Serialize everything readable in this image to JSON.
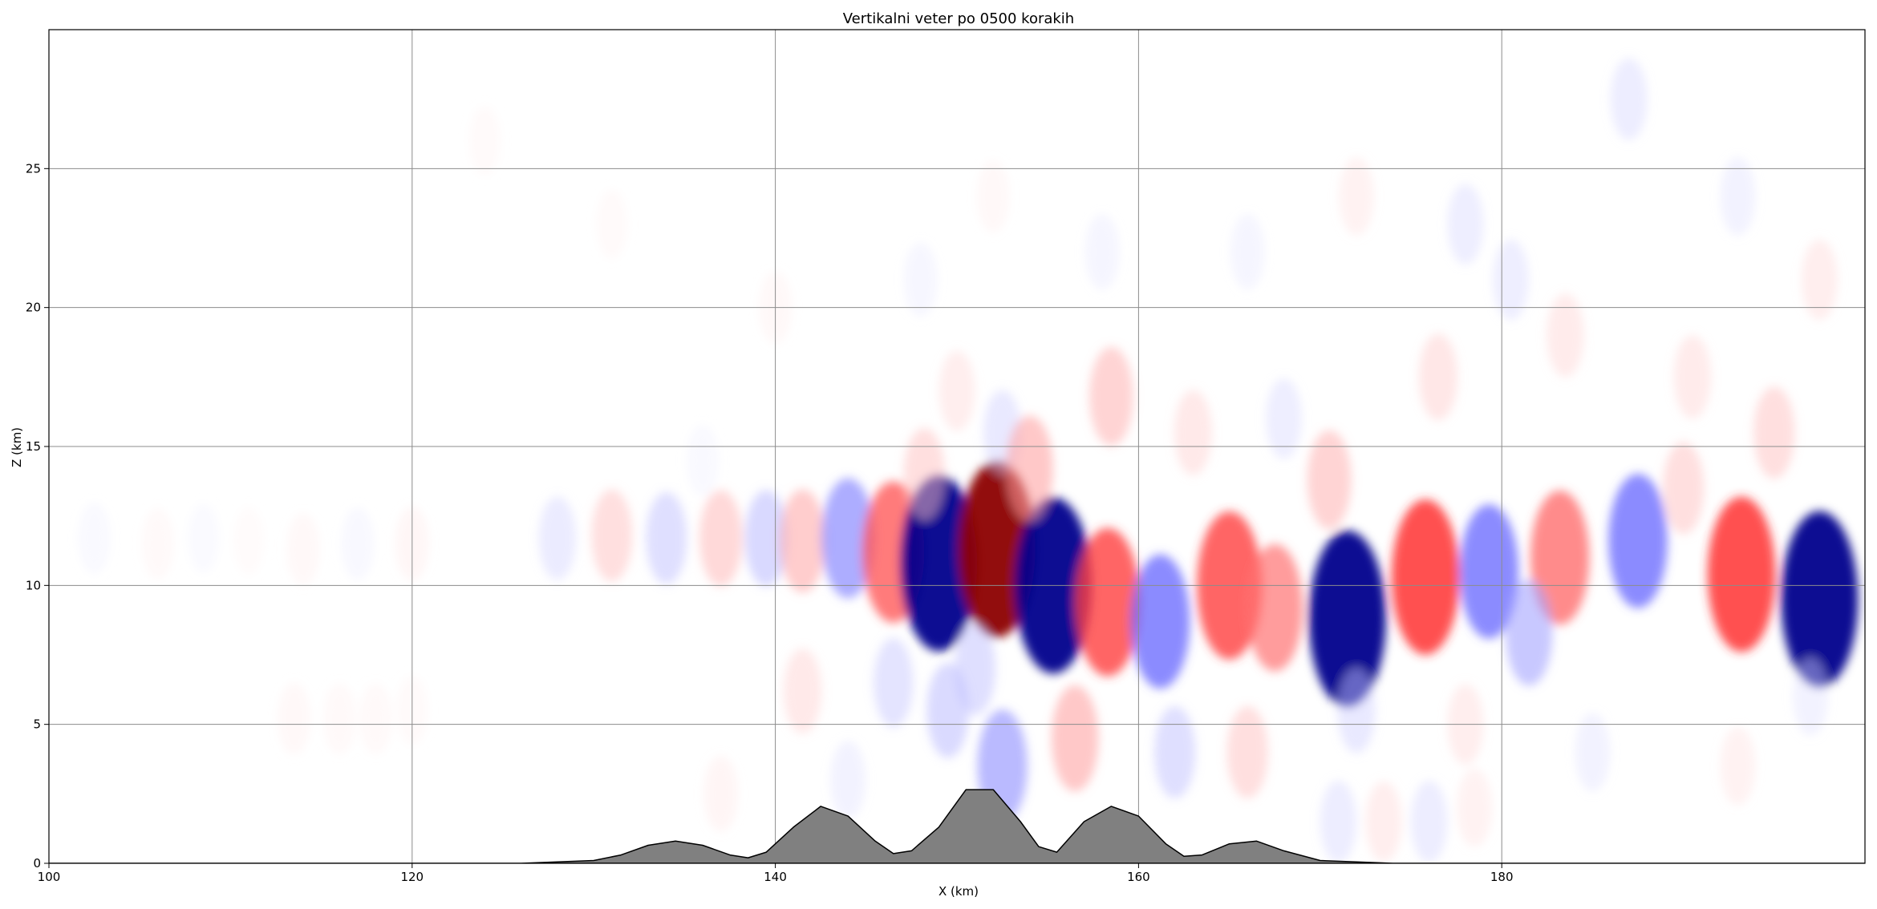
{
  "chart_data": {
    "type": "heatmap",
    "title": "Vertikalni veter po 0500 korakih",
    "xlabel": "X (km)",
    "ylabel": "Z (km)",
    "xlim": [
      100,
      200
    ],
    "ylim": [
      0,
      30
    ],
    "xticks": [
      100,
      120,
      140,
      160,
      180
    ],
    "yticks": [
      0,
      5,
      10,
      15,
      20,
      25
    ],
    "grid": true,
    "colormap": "bwr",
    "colors": {
      "positive": "#ff0000",
      "negative": "#0000ff",
      "neutral": "#ffffff",
      "terrain": "#808080"
    },
    "terrain": {
      "x": [
        100,
        126,
        128,
        130,
        131.5,
        133,
        134.5,
        136,
        137.5,
        138.5,
        139.5,
        141,
        142.5,
        144,
        145.5,
        146.5,
        147.5,
        149,
        150.5,
        152,
        153.5,
        154.5,
        155.5,
        157,
        158.5,
        160,
        161.5,
        162.5,
        163.5,
        165,
        166.5,
        168,
        170,
        172,
        174,
        200
      ],
      "z": [
        0,
        0,
        0.05,
        0.1,
        0.3,
        0.65,
        0.8,
        0.65,
        0.3,
        0.2,
        0.4,
        1.3,
        2.05,
        1.7,
        0.8,
        0.35,
        0.45,
        1.3,
        2.65,
        2.65,
        1.5,
        0.6,
        0.4,
        1.5,
        2.05,
        1.7,
        0.7,
        0.25,
        0.3,
        0.7,
        0.8,
        0.45,
        0.1,
        0.05,
        0,
        0
      ]
    },
    "field": [
      {
        "x": 102.5,
        "z": 11.7,
        "w": -0.5
      },
      {
        "x": 106,
        "z": 11.5,
        "w": 0.5
      },
      {
        "x": 108.5,
        "z": 11.7,
        "w": -0.4
      },
      {
        "x": 111,
        "z": 11.6,
        "w": 0.3
      },
      {
        "x": 114,
        "z": 11.3,
        "w": 0.6
      },
      {
        "x": 117,
        "z": 11.5,
        "w": -0.6
      },
      {
        "x": 120,
        "z": 11.5,
        "w": 0.7
      },
      {
        "x": 128,
        "z": 11.7,
        "w": -1.4
      },
      {
        "x": 131,
        "z": 11.8,
        "w": 2
      },
      {
        "x": 134,
        "z": 11.7,
        "w": -2
      },
      {
        "x": 137,
        "z": 11.7,
        "w": 2.3
      },
      {
        "x": 139.5,
        "z": 11.7,
        "w": -2.3
      },
      {
        "x": 141.5,
        "z": 11.6,
        "w": 2.8
      },
      {
        "x": 144,
        "z": 11.7,
        "w": -4
      },
      {
        "x": 146.5,
        "z": 11.2,
        "w": 5.5
      },
      {
        "x": 149,
        "z": 10.8,
        "w": -8
      },
      {
        "x": 152.2,
        "z": 11.3,
        "w": 8
      },
      {
        "x": 155.3,
        "z": 10,
        "w": -8
      },
      {
        "x": 158.3,
        "z": 9.4,
        "w": 6
      },
      {
        "x": 161.2,
        "z": 8.7,
        "w": -5
      },
      {
        "x": 165,
        "z": 10,
        "w": 6
      },
      {
        "x": 167.5,
        "z": 9.2,
        "w": 4.5
      },
      {
        "x": 171.5,
        "z": 8.8,
        "w": -8
      },
      {
        "x": 175.8,
        "z": 10.3,
        "w": 6.5
      },
      {
        "x": 179.3,
        "z": 10.5,
        "w": -5
      },
      {
        "x": 183.2,
        "z": 11,
        "w": 5
      },
      {
        "x": 187.5,
        "z": 11.6,
        "w": -5
      },
      {
        "x": 181.5,
        "z": 8.3,
        "w": -3
      },
      {
        "x": 193.2,
        "z": 10.4,
        "w": 6.5
      },
      {
        "x": 197.5,
        "z": 9.5,
        "w": -8
      },
      {
        "x": 148.2,
        "z": 14,
        "w": 2
      },
      {
        "x": 150,
        "z": 17,
        "w": 1.2
      },
      {
        "x": 152.5,
        "z": 15.5,
        "w": -1.5
      },
      {
        "x": 154,
        "z": 14.2,
        "w": 3
      },
      {
        "x": 158.5,
        "z": 16.8,
        "w": 2.5
      },
      {
        "x": 163,
        "z": 15.5,
        "w": 1.5
      },
      {
        "x": 170.5,
        "z": 13.8,
        "w": 2.5
      },
      {
        "x": 168,
        "z": 16,
        "w": -1.2
      },
      {
        "x": 176.5,
        "z": 17.5,
        "w": 1.6
      },
      {
        "x": 180.5,
        "z": 21,
        "w": -1.2
      },
      {
        "x": 183.5,
        "z": 19,
        "w": 1.4
      },
      {
        "x": 190.5,
        "z": 17.5,
        "w": 1.4
      },
      {
        "x": 195,
        "z": 15.5,
        "w": 2
      },
      {
        "x": 190,
        "z": 13.5,
        "w": 2
      },
      {
        "x": 197.5,
        "z": 21,
        "w": 1.2
      },
      {
        "x": 193,
        "z": 24,
        "w": -1
      },
      {
        "x": 187,
        "z": 27.5,
        "w": -1.3
      },
      {
        "x": 178,
        "z": 23,
        "w": -1.2
      },
      {
        "x": 172,
        "z": 24,
        "w": 1
      },
      {
        "x": 166,
        "z": 22,
        "w": -0.8
      },
      {
        "x": 158,
        "z": 22,
        "w": -0.8
      },
      {
        "x": 148,
        "z": 21,
        "w": -0.7
      },
      {
        "x": 152,
        "z": 24,
        "w": 0.6
      },
      {
        "x": 140,
        "z": 20,
        "w": 0.6
      },
      {
        "x": 131,
        "z": 23,
        "w": 0.4
      },
      {
        "x": 124,
        "z": 26,
        "w": 0.4
      },
      {
        "x": 136,
        "z": 14.5,
        "w": -0.5
      },
      {
        "x": 141.5,
        "z": 6.2,
        "w": 1.5
      },
      {
        "x": 146.5,
        "z": 6.5,
        "w": -1.8
      },
      {
        "x": 149.5,
        "z": 5.5,
        "w": -2.2
      },
      {
        "x": 152.5,
        "z": 3.5,
        "w": -3.5
      },
      {
        "x": 151,
        "z": 7,
        "w": -2
      },
      {
        "x": 156.5,
        "z": 4.5,
        "w": 3
      },
      {
        "x": 162,
        "z": 4,
        "w": -2
      },
      {
        "x": 166,
        "z": 4,
        "w": 2
      },
      {
        "x": 172,
        "z": 5.5,
        "w": -1.5
      },
      {
        "x": 178,
        "z": 5,
        "w": 1.2
      },
      {
        "x": 185,
        "z": 4,
        "w": -1
      },
      {
        "x": 193,
        "z": 3.5,
        "w": 1
      },
      {
        "x": 197,
        "z": 6,
        "w": -1
      },
      {
        "x": 171,
        "z": 1.5,
        "w": -1.3
      },
      {
        "x": 173.5,
        "z": 1.5,
        "w": 1.2
      },
      {
        "x": 176,
        "z": 1.5,
        "w": -1.3
      },
      {
        "x": 178.5,
        "z": 2,
        "w": 1
      },
      {
        "x": 144,
        "z": 3,
        "w": -1
      },
      {
        "x": 137,
        "z": 2.5,
        "w": 0.8
      },
      {
        "x": 113.5,
        "z": 5.2,
        "w": 0.6
      },
      {
        "x": 116,
        "z": 5.2,
        "w": 0.5
      },
      {
        "x": 118,
        "z": 5.2,
        "w": 0.5
      },
      {
        "x": 120,
        "z": 5.5,
        "w": 0.4
      }
    ]
  }
}
